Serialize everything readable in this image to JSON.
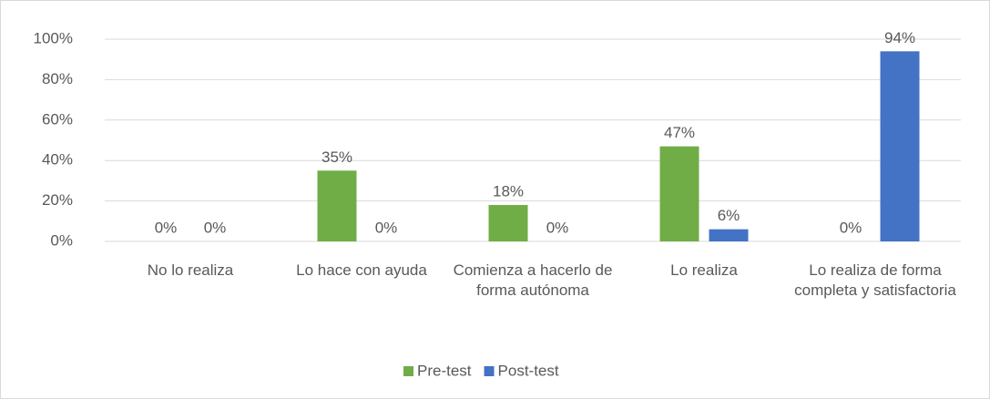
{
  "chart_data": {
    "type": "bar",
    "categories": [
      "No lo realiza",
      "Lo hace con ayuda",
      "Comienza a hacerlo de forma autónoma",
      "Lo realiza",
      "Lo realiza de forma completa y satisfactoria"
    ],
    "series": [
      {
        "name": "Pre-test",
        "color": "#70ad47",
        "values": [
          0,
          35,
          18,
          47,
          0
        ],
        "value_labels": [
          "0%",
          "35%",
          "18%",
          "47%",
          "0%"
        ]
      },
      {
        "name": "Post-test",
        "color": "#4472c4",
        "values": [
          0,
          0,
          0,
          6,
          94
        ],
        "value_labels": [
          "0%",
          "0%",
          "0%",
          "6%",
          "94%"
        ]
      }
    ],
    "ylim": [
      0,
      100
    ],
    "yticks": [
      {
        "value": 0,
        "label": "0%"
      },
      {
        "value": 20,
        "label": "20%"
      },
      {
        "value": 40,
        "label": "40%"
      },
      {
        "value": 60,
        "label": "60%"
      },
      {
        "value": 80,
        "label": "80%"
      },
      {
        "value": 100,
        "label": "100%"
      }
    ],
    "grid": true,
    "legend": "bottom"
  }
}
